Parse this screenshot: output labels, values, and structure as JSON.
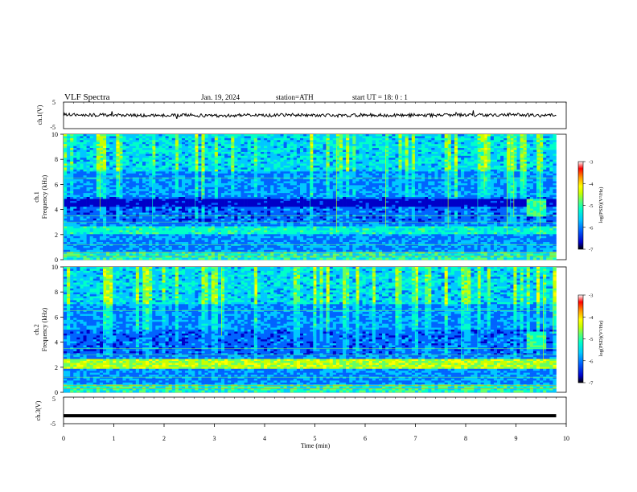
{
  "header": {
    "title": "VLF  Spectra",
    "date": "Jan.  19,  2024",
    "station": "station=ATH",
    "start_ut": "start  UT  =   18: 0   : 1"
  },
  "colors": {
    "background": "#ffffff",
    "axis": "#000000",
    "colormap": [
      "#000000",
      "#0000c8",
      "#0064ff",
      "#00c8ff",
      "#00ffc8",
      "#64ff64",
      "#c8ff00",
      "#ffff00",
      "#ff9600",
      "#ff0000",
      "#ffffff"
    ]
  },
  "chart_data": [
    {
      "type": "line",
      "name": "ch1-waveform",
      "ylabel": "ch.1(V)",
      "ylim": [
        -5,
        5
      ],
      "yticks": [
        "5",
        "-5"
      ],
      "xlim": [
        0,
        10
      ],
      "x": [
        0,
        0.5,
        1,
        1.5,
        2,
        2.5,
        3,
        3.5,
        4,
        4.5,
        5,
        5.5,
        6,
        6.5,
        7,
        7.5,
        8,
        8.5,
        9,
        9.5,
        9.8
      ],
      "y": [
        0.3,
        0.1,
        0.2,
        -0.1,
        0.0,
        0.1,
        -0.2,
        0.1,
        0.0,
        0.2,
        0.1,
        -0.1,
        0.2,
        0.0,
        0.1,
        0.0,
        0.2,
        0.1,
        0.3,
        0.0,
        0.1
      ]
    },
    {
      "type": "heatmap",
      "name": "ch1-spectrogram",
      "ylabel_channel": "ch.1",
      "ylabel": "Frequency  (kHz)",
      "ylim": [
        0,
        10
      ],
      "yticks": [
        "0",
        "2",
        "4",
        "6",
        "8",
        "10"
      ],
      "xlim": [
        0,
        9.8
      ],
      "colorbar": {
        "label": "log(PSD)(V²/Hz)",
        "range": [
          -7,
          -3
        ],
        "ticks": [
          "-3",
          "-4",
          "-5",
          "-6",
          "-7"
        ]
      }
    },
    {
      "type": "heatmap",
      "name": "ch2-spectrogram",
      "ylabel_channel": "ch.2",
      "ylabel": "Frequency  (kHz)",
      "ylim": [
        0,
        10
      ],
      "yticks": [
        "0",
        "2",
        "4",
        "6",
        "8",
        "10"
      ],
      "xlim": [
        0,
        9.8
      ],
      "colorbar": {
        "label": "log(PSD)(V²/Hz)",
        "range": [
          -7,
          -3
        ],
        "ticks": [
          "-3",
          "-4",
          "-5",
          "-6",
          "-7"
        ]
      }
    },
    {
      "type": "line",
      "name": "ch3-waveform",
      "ylabel": "ch.3(V)",
      "ylim": [
        -5,
        5
      ],
      "yticks": [
        "5",
        "-5"
      ],
      "xlim": [
        0,
        10
      ],
      "xlabel": "Time  (min)",
      "xticks": [
        "0",
        "1",
        "2",
        "3",
        "4",
        "5",
        "6",
        "7",
        "8",
        "9",
        "10"
      ],
      "x": [
        0,
        9.8
      ],
      "y": [
        -2,
        -2
      ]
    }
  ]
}
